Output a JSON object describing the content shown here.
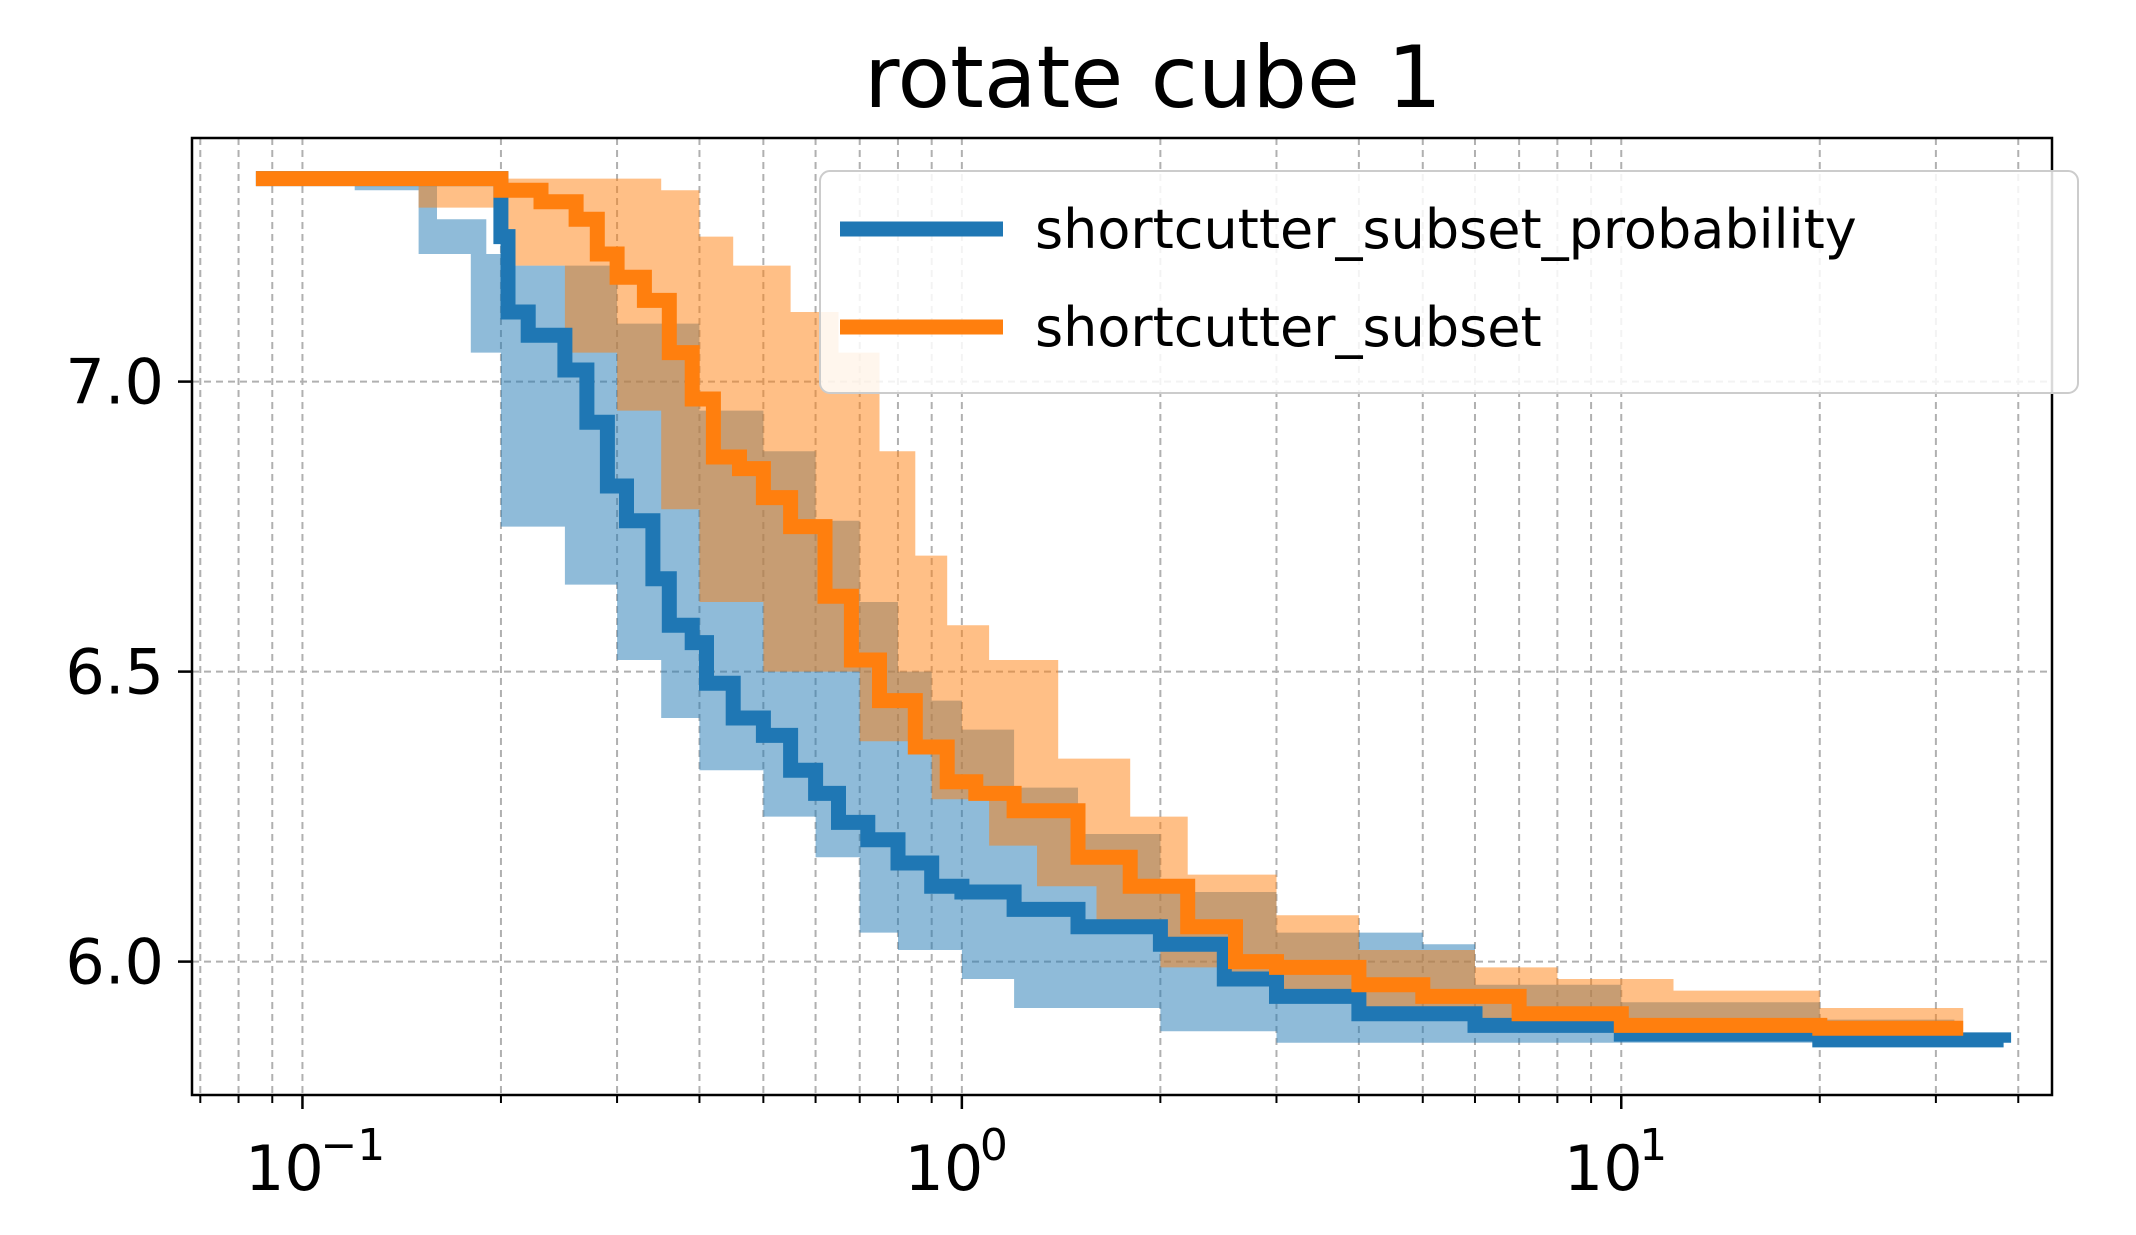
{
  "chart_data": {
    "type": "line",
    "title": "rotate cube 1",
    "xlabel": "",
    "ylabel": "",
    "x_scale": "log",
    "xlim": [
      0.068,
      45
    ],
    "ylim": [
      5.77,
      7.42
    ],
    "grid": true,
    "legend_position": "top-right",
    "x_ticks": [
      {
        "value": 0.1,
        "base": "10",
        "exp": "−1"
      },
      {
        "value": 1,
        "base": "10",
        "exp": "0"
      },
      {
        "value": 10,
        "base": "10",
        "exp": "1"
      }
    ],
    "y_ticks": [
      {
        "value": 6.0,
        "label": "6.0"
      },
      {
        "value": 6.5,
        "label": "6.5"
      },
      {
        "value": 7.0,
        "label": "7.0"
      }
    ],
    "series": [
      {
        "name": "shortcutter_subset_probability",
        "color": "#1f77b4",
        "points": [
          [
            0.085,
            7.35
          ],
          [
            0.19,
            7.35
          ],
          [
            0.2,
            7.25
          ],
          [
            0.205,
            7.12
          ],
          [
            0.22,
            7.08
          ],
          [
            0.25,
            7.02
          ],
          [
            0.27,
            6.93
          ],
          [
            0.29,
            6.82
          ],
          [
            0.31,
            6.76
          ],
          [
            0.34,
            6.66
          ],
          [
            0.36,
            6.58
          ],
          [
            0.39,
            6.55
          ],
          [
            0.41,
            6.48
          ],
          [
            0.45,
            6.42
          ],
          [
            0.5,
            6.39
          ],
          [
            0.55,
            6.33
          ],
          [
            0.6,
            6.29
          ],
          [
            0.65,
            6.24
          ],
          [
            0.72,
            6.21
          ],
          [
            0.8,
            6.17
          ],
          [
            0.9,
            6.13
          ],
          [
            1.0,
            6.12
          ],
          [
            1.2,
            6.09
          ],
          [
            1.5,
            6.06
          ],
          [
            2.0,
            6.03
          ],
          [
            2.5,
            5.97
          ],
          [
            3.0,
            5.94
          ],
          [
            4.0,
            5.91
          ],
          [
            6.0,
            5.89
          ],
          [
            10.0,
            5.875
          ],
          [
            20.0,
            5.865
          ],
          [
            38.0,
            5.86
          ]
        ],
        "band_upper": [
          [
            0.085,
            7.35
          ],
          [
            0.14,
            7.35
          ],
          [
            0.16,
            7.28
          ],
          [
            0.19,
            7.22
          ],
          [
            0.21,
            7.2
          ],
          [
            0.3,
            7.1
          ],
          [
            0.4,
            6.95
          ],
          [
            0.5,
            6.88
          ],
          [
            0.6,
            6.76
          ],
          [
            0.7,
            6.62
          ],
          [
            0.8,
            6.5
          ],
          [
            0.9,
            6.45
          ],
          [
            1.0,
            6.4
          ],
          [
            1.2,
            6.3
          ],
          [
            1.5,
            6.22
          ],
          [
            2.0,
            6.12
          ],
          [
            3.0,
            6.05
          ],
          [
            5.0,
            6.03
          ],
          [
            6.0,
            5.96
          ],
          [
            10.0,
            5.93
          ],
          [
            20.0,
            5.9
          ],
          [
            32.0,
            5.88
          ]
        ],
        "band_lower": [
          [
            0.085,
            7.35
          ],
          [
            0.12,
            7.33
          ],
          [
            0.15,
            7.22
          ],
          [
            0.18,
            7.05
          ],
          [
            0.2,
            6.75
          ],
          [
            0.25,
            6.65
          ],
          [
            0.3,
            6.52
          ],
          [
            0.35,
            6.42
          ],
          [
            0.4,
            6.33
          ],
          [
            0.5,
            6.25
          ],
          [
            0.6,
            6.18
          ],
          [
            0.7,
            6.05
          ],
          [
            0.8,
            6.02
          ],
          [
            1.0,
            5.97
          ],
          [
            1.2,
            5.92
          ],
          [
            2.0,
            5.88
          ],
          [
            3.0,
            5.86
          ],
          [
            10.0,
            5.86
          ],
          [
            32.0,
            5.86
          ]
        ]
      },
      {
        "name": "shortcutter_subset",
        "color": "#ff7f0e",
        "points": [
          [
            0.085,
            7.35
          ],
          [
            0.17,
            7.35
          ],
          [
            0.2,
            7.33
          ],
          [
            0.23,
            7.31
          ],
          [
            0.26,
            7.28
          ],
          [
            0.28,
            7.22
          ],
          [
            0.3,
            7.18
          ],
          [
            0.33,
            7.14
          ],
          [
            0.36,
            7.05
          ],
          [
            0.39,
            6.97
          ],
          [
            0.42,
            6.87
          ],
          [
            0.46,
            6.85
          ],
          [
            0.5,
            6.8
          ],
          [
            0.55,
            6.75
          ],
          [
            0.62,
            6.63
          ],
          [
            0.68,
            6.52
          ],
          [
            0.75,
            6.45
          ],
          [
            0.85,
            6.37
          ],
          [
            0.95,
            6.31
          ],
          [
            1.05,
            6.29
          ],
          [
            1.2,
            6.26
          ],
          [
            1.5,
            6.18
          ],
          [
            1.8,
            6.13
          ],
          [
            2.2,
            6.06
          ],
          [
            2.6,
            6.0
          ],
          [
            3.0,
            5.99
          ],
          [
            4.0,
            5.96
          ],
          [
            5.0,
            5.94
          ],
          [
            7.0,
            5.91
          ],
          [
            10.0,
            5.89
          ],
          [
            20.0,
            5.885
          ],
          [
            33.0,
            5.885
          ]
        ],
        "band_upper": [
          [
            0.085,
            7.35
          ],
          [
            0.2,
            7.35
          ],
          [
            0.3,
            7.35
          ],
          [
            0.35,
            7.33
          ],
          [
            0.4,
            7.25
          ],
          [
            0.45,
            7.2
          ],
          [
            0.55,
            7.12
          ],
          [
            0.65,
            7.05
          ],
          [
            0.75,
            6.88
          ],
          [
            0.85,
            6.7
          ],
          [
            0.95,
            6.58
          ],
          [
            1.1,
            6.52
          ],
          [
            1.4,
            6.35
          ],
          [
            1.8,
            6.25
          ],
          [
            2.2,
            6.15
          ],
          [
            3.0,
            6.08
          ],
          [
            4.0,
            6.02
          ],
          [
            6.0,
            5.99
          ],
          [
            8.0,
            5.97
          ],
          [
            12.0,
            5.95
          ],
          [
            20.0,
            5.92
          ],
          [
            33.0,
            5.9
          ]
        ],
        "band_lower": [
          [
            0.085,
            7.35
          ],
          [
            0.15,
            7.3
          ],
          [
            0.2,
            7.2
          ],
          [
            0.25,
            7.05
          ],
          [
            0.3,
            6.95
          ],
          [
            0.35,
            6.78
          ],
          [
            0.4,
            6.62
          ],
          [
            0.5,
            6.5
          ],
          [
            0.7,
            6.38
          ],
          [
            0.9,
            6.28
          ],
          [
            1.1,
            6.2
          ],
          [
            1.3,
            6.13
          ],
          [
            1.6,
            6.07
          ],
          [
            2.0,
            5.99
          ],
          [
            2.5,
            5.97
          ],
          [
            3.0,
            5.95
          ],
          [
            4.0,
            5.92
          ],
          [
            6.0,
            5.9
          ],
          [
            10.0,
            5.88
          ],
          [
            33.0,
            5.87
          ]
        ]
      }
    ]
  }
}
